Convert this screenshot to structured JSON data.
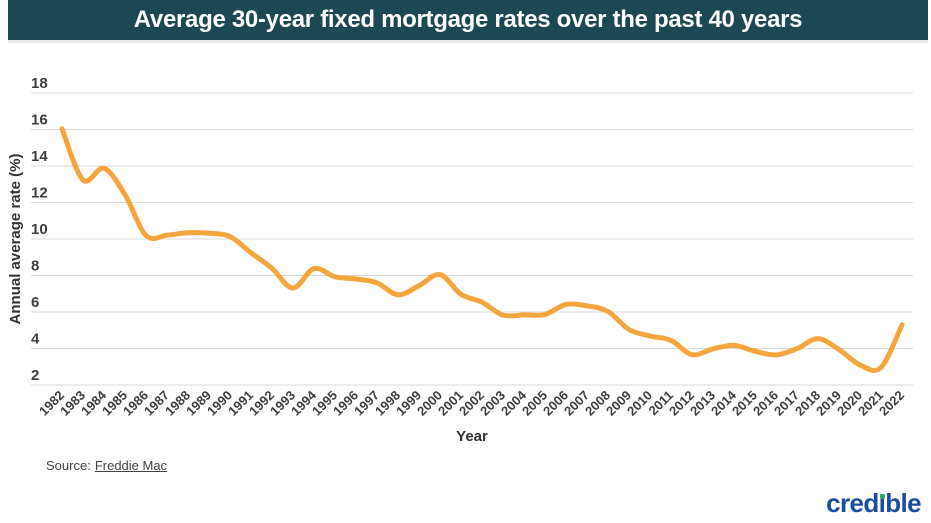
{
  "header": {
    "title": "Average 30-year fixed mortgage rates over the past 40 years",
    "background": "#1b4852",
    "text_color": "#ffffff"
  },
  "chart_data": {
    "type": "line",
    "title": "Average 30-year fixed mortgage rates over the past 40 years",
    "xlabel": "Year",
    "ylabel": "Annual average rate (%)",
    "ylim": [
      2,
      18
    ],
    "yticks": [
      18,
      16,
      14,
      12,
      10,
      8,
      6,
      4,
      2
    ],
    "grid": true,
    "grid_color": "#d9d9d9",
    "line_color": "#f5a53d",
    "legend_position": "none",
    "categories": [
      "1982",
      "1983",
      "1984",
      "1985",
      "1986",
      "1987",
      "1988",
      "1989",
      "1990",
      "1991",
      "1992",
      "1993",
      "1994",
      "1995",
      "1996",
      "1997",
      "1998",
      "1999",
      "2000",
      "2001",
      "2002",
      "2003",
      "2004",
      "2005",
      "2006",
      "2007",
      "2008",
      "2009",
      "2010",
      "2011",
      "2012",
      "2013",
      "2014",
      "2015",
      "2016",
      "2017",
      "2018",
      "2019",
      "2020",
      "2021",
      "2022"
    ],
    "values": [
      16.04,
      13.24,
      13.88,
      12.43,
      10.19,
      10.21,
      10.34,
      10.32,
      10.13,
      9.25,
      8.39,
      7.31,
      8.38,
      7.93,
      7.81,
      7.6,
      6.94,
      7.44,
      8.05,
      6.97,
      6.54,
      5.83,
      5.84,
      5.87,
      6.41,
      6.34,
      6.03,
      5.04,
      4.69,
      4.45,
      3.66,
      3.98,
      4.17,
      3.85,
      3.65,
      3.99,
      4.54,
      3.94,
      3.1,
      2.96,
      5.3
    ]
  },
  "footer": {
    "source_prefix": "Source:",
    "source_link": "Freddie Mac",
    "logo": {
      "text": "credible",
      "parts": [
        "cred",
        "ı",
        "ble"
      ],
      "color": "#1b4da0",
      "dot_color": "#27ae60"
    }
  }
}
